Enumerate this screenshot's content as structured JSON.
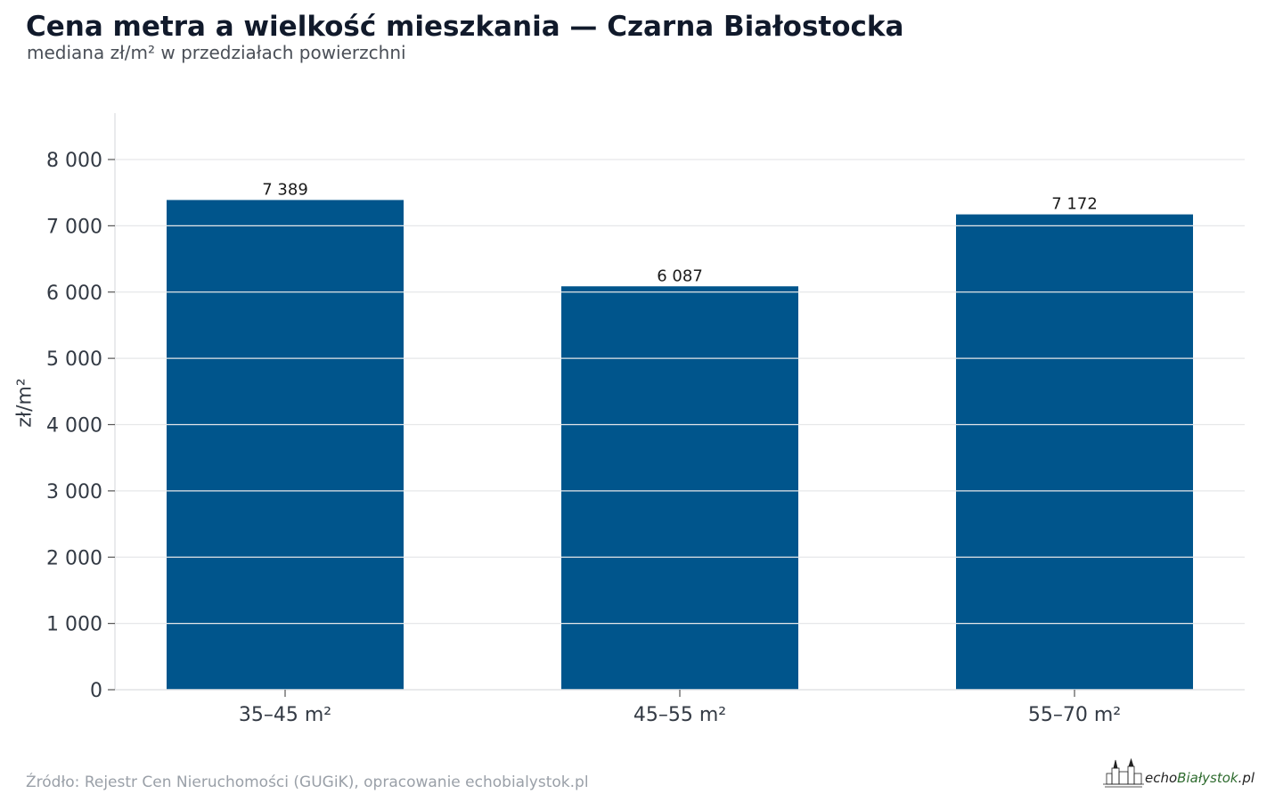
{
  "chart_data": {
    "type": "bar",
    "title": "Cena metra a wielkość mieszkania — Czarna Białostocka",
    "subtitle": "mediana zł/m² w przedziałach powierzchni",
    "xlabel": "",
    "ylabel": "zł/m²",
    "categories": [
      "35–45 m²",
      "45–55 m²",
      "55–70 m²"
    ],
    "values": [
      7389,
      6087,
      7172
    ],
    "value_labels": [
      "7 389",
      "6 087",
      "7 172"
    ],
    "ylim": [
      0,
      8700
    ],
    "yticks": [
      0,
      1000,
      2000,
      3000,
      4000,
      5000,
      6000,
      7000,
      8000
    ],
    "ytick_labels": [
      "0",
      "1 000",
      "2 000",
      "3 000",
      "4 000",
      "5 000",
      "6 000",
      "7 000",
      "8 000"
    ],
    "grid": true,
    "bar_color": "#00558c",
    "grid_color": "#e6e7e9"
  },
  "footer": {
    "source": "Źródło: Rejestr Cen Nieruchomości (GUGiK), opracowanie echobialystok.pl"
  },
  "logo": {
    "text_prefix": "echo",
    "text_main": "Białystok",
    "text_suffix": ".pl",
    "icon": "city-skyline-icon"
  }
}
